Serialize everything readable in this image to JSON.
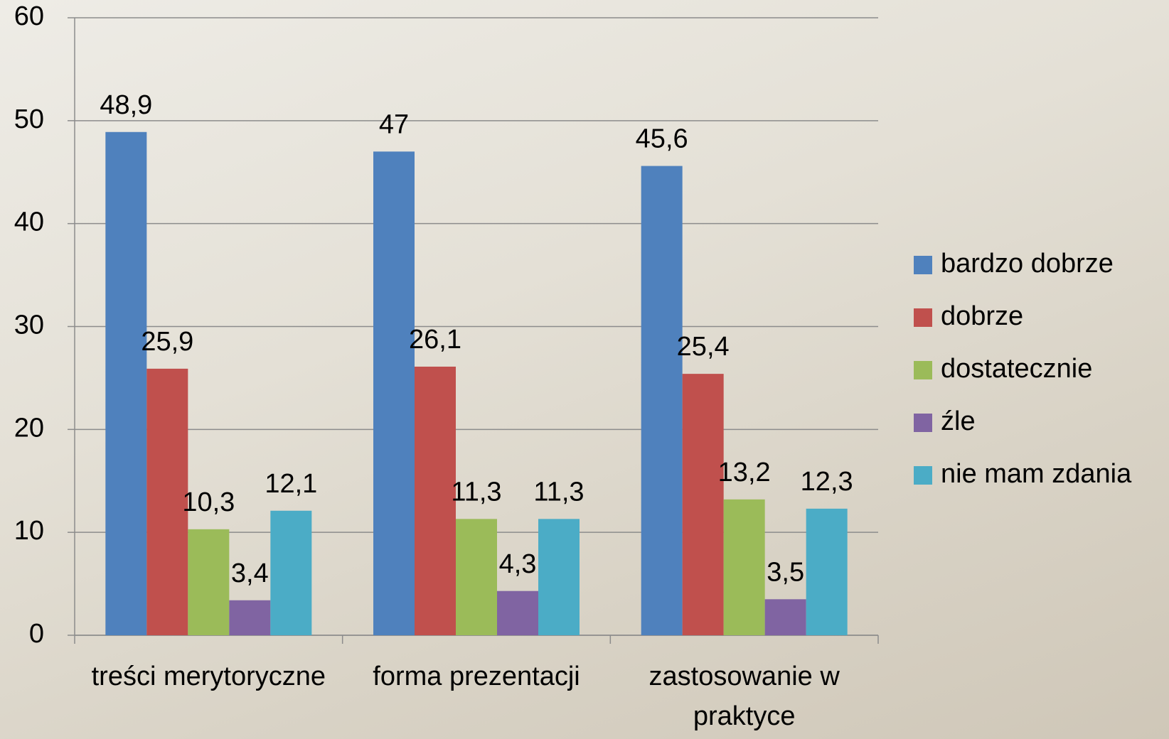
{
  "chart_data": {
    "type": "bar",
    "categories": [
      "treści merytoryczne",
      "forma prezentacji",
      "zastosowanie w praktyce"
    ],
    "series": [
      {
        "name": "bardzo dobrze",
        "color": "#4f81bd",
        "values": [
          48.9,
          47,
          45.6
        ],
        "value_labels": [
          "48,9",
          "47",
          "45,6"
        ]
      },
      {
        "name": "dobrze",
        "color": "#c0504d",
        "values": [
          25.9,
          26.1,
          25.4
        ],
        "value_labels": [
          "25,9",
          "26,1",
          "25,4"
        ]
      },
      {
        "name": "dostatecznie",
        "color": "#9bbb59",
        "values": [
          10.3,
          11.3,
          13.2
        ],
        "value_labels": [
          "10,3",
          "11,3",
          "13,2"
        ]
      },
      {
        "name": "źle",
        "color": "#8064a2",
        "values": [
          3.4,
          4.3,
          3.5
        ],
        "value_labels": [
          "3,4",
          "4,3",
          "3,5"
        ]
      },
      {
        "name": "nie mam zdania",
        "color": "#4bacc6",
        "values": [
          12.1,
          11.3,
          12.3
        ],
        "value_labels": [
          "12,1",
          "11,3",
          "12,3"
        ]
      }
    ],
    "ylim": [
      0,
      60
    ],
    "yticks": [
      0,
      10,
      20,
      30,
      40,
      50,
      60
    ],
    "grid": true,
    "legend": "right"
  }
}
